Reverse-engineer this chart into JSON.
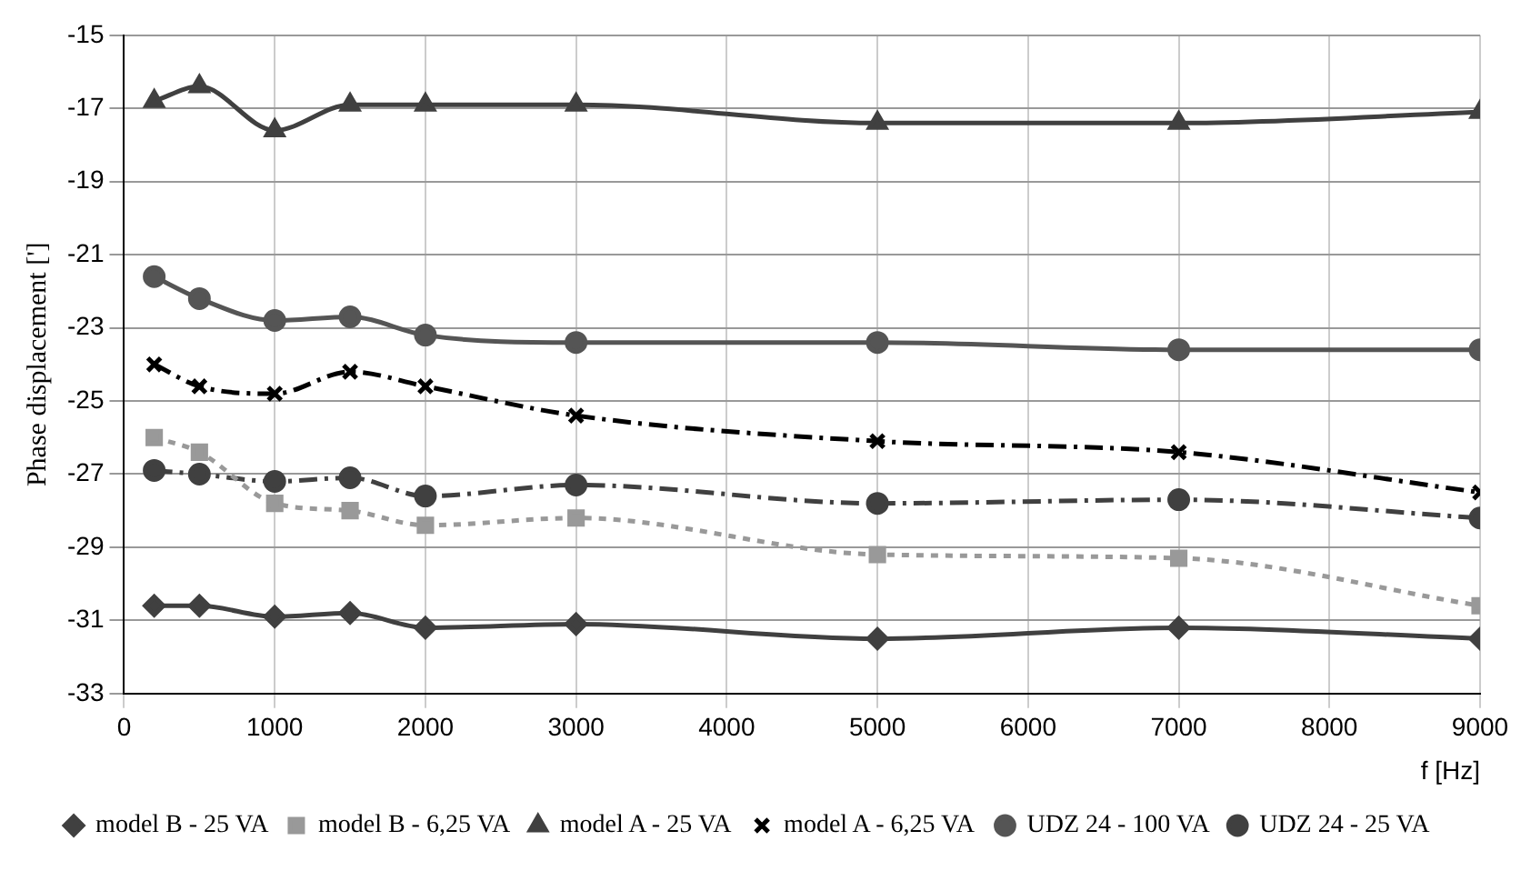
{
  "chart_data": {
    "type": "line",
    "xlabel": "f [Hz]",
    "ylabel": "Phase displacement [']",
    "x": [
      200,
      500,
      1000,
      1500,
      2000,
      3000,
      5000,
      7000,
      9000
    ],
    "series": [
      {
        "name": "model B - 25 VA",
        "color": "#404040",
        "marker": "diamond",
        "line_style": "solid",
        "values": [
          -30.6,
          -30.6,
          -30.9,
          -30.8,
          -31.2,
          -31.1,
          -31.5,
          -31.2,
          -31.5
        ]
      },
      {
        "name": "model B - 6,25 VA",
        "color": "#999999",
        "marker": "square",
        "line_style": "dotted",
        "values": [
          -26.0,
          -26.4,
          -27.8,
          -28.0,
          -28.4,
          -28.2,
          -29.2,
          -29.3,
          -30.6
        ]
      },
      {
        "name": "model A - 25 VA",
        "color": "#404040",
        "marker": "triangle",
        "line_style": "solid",
        "values": [
          -16.8,
          -16.4,
          -17.6,
          -16.9,
          -16.9,
          -16.9,
          -17.4,
          -17.4,
          -17.1
        ]
      },
      {
        "name": "model A - 6,25 VA",
        "color": "#000000",
        "marker": "cross",
        "line_style": "dashed",
        "values": [
          -24.0,
          -24.6,
          -24.8,
          -24.2,
          -24.6,
          -25.4,
          -26.1,
          -26.4,
          -27.5
        ]
      },
      {
        "name": "UDZ 24 - 100 VA",
        "color": "#555555",
        "marker": "circle",
        "line_style": "solid",
        "values": [
          -21.6,
          -22.2,
          -22.8,
          -22.7,
          -23.2,
          -23.4,
          -23.4,
          -23.6,
          -23.6
        ]
      },
      {
        "name": "UDZ 24 - 25 VA",
        "color": "#404040",
        "marker": "circle",
        "line_style": "dashed",
        "values": [
          -26.9,
          -27.0,
          -27.2,
          -27.1,
          -27.6,
          -27.3,
          -27.8,
          -27.7,
          -28.2
        ]
      }
    ],
    "xlim": [
      0,
      9000
    ],
    "xticks": [
      0,
      1000,
      2000,
      3000,
      4000,
      5000,
      6000,
      7000,
      8000,
      9000
    ],
    "ylim": [
      -33,
      -15
    ],
    "yticks": [
      -33,
      -31,
      -29,
      -27,
      -25,
      -23,
      -21,
      -19,
      -17,
      -15
    ],
    "grid": true,
    "legend": "bottom"
  }
}
